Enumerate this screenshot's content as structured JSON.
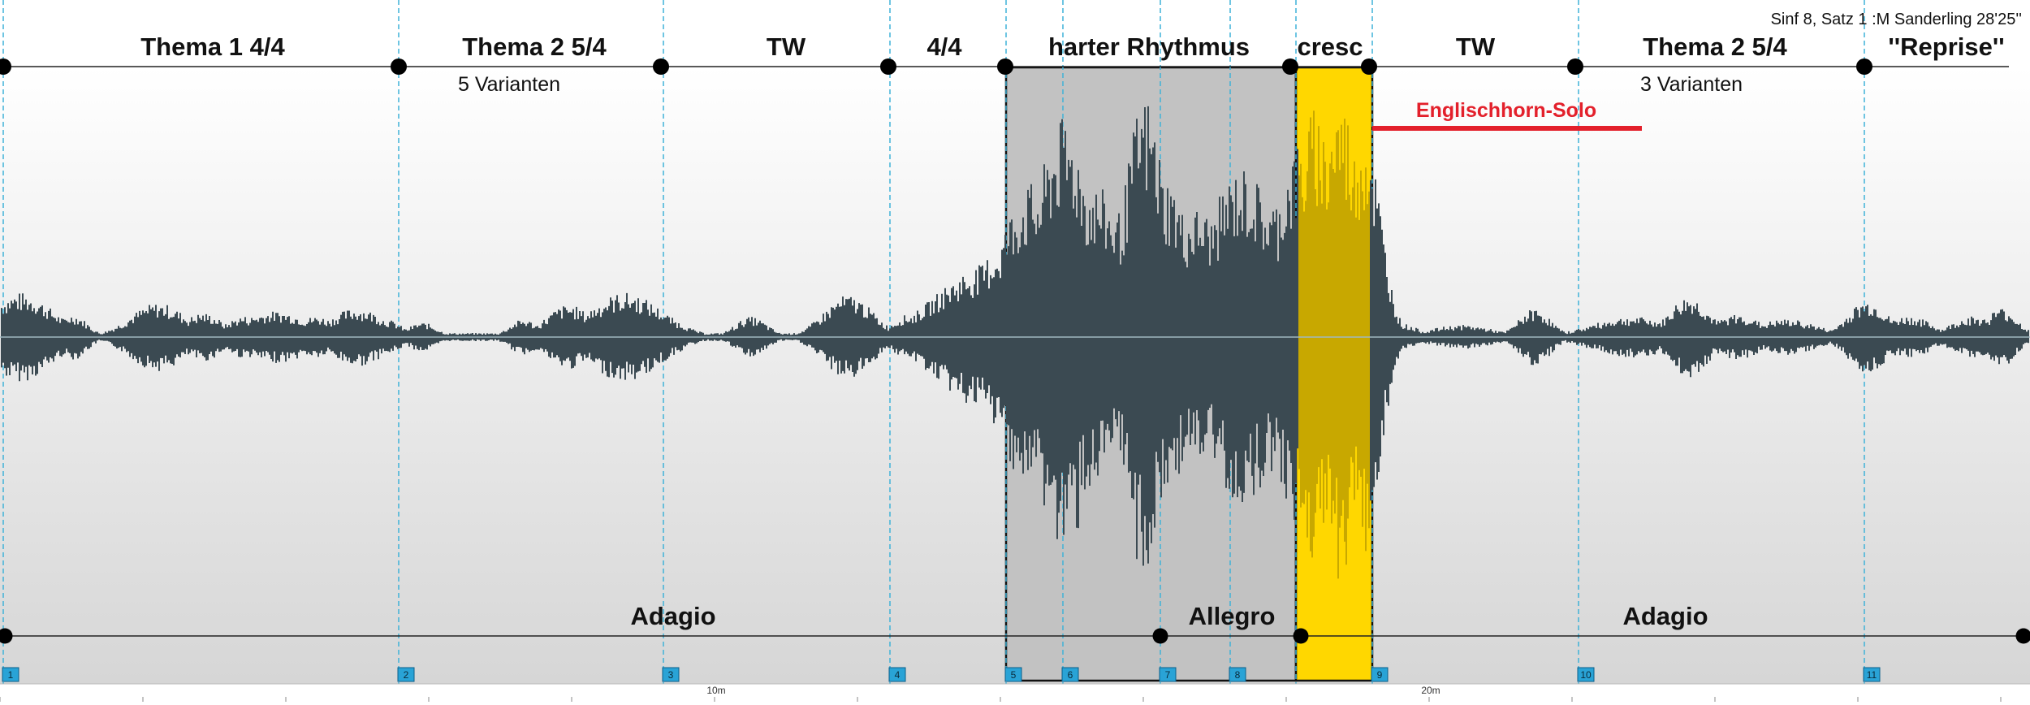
{
  "title": "Sinf 8, Satz 1 :M Sanderling 28'25''",
  "sections": [
    {
      "label": "Thema 1  4/4",
      "sub": ""
    },
    {
      "label": "Thema 2  5/4",
      "sub": "5 Varianten"
    },
    {
      "label": "TW",
      "sub": ""
    },
    {
      "label": "4/4",
      "sub": ""
    },
    {
      "label": "harter Rhythmus",
      "sub": ""
    },
    {
      "label": "cresc",
      "sub": ""
    },
    {
      "label": "TW",
      "sub": ""
    },
    {
      "label": "Thema 2  5/4",
      "sub": "3 Varianten"
    },
    {
      "label": "''Reprise''",
      "sub": ""
    }
  ],
  "annotation": {
    "label": "Englischhorn-Solo",
    "color": "#e3202b"
  },
  "tempi": [
    {
      "label": "Adagio"
    },
    {
      "label": "Allegro"
    },
    {
      "label": "Adagio"
    }
  ],
  "markers": [
    "1",
    "2",
    "3",
    "4",
    "5",
    "6",
    "7",
    "8",
    "9",
    "10",
    "11"
  ],
  "time_ticks": [
    "10m",
    "20m"
  ],
  "colors": {
    "waveform": "#3b4a52",
    "waveform_highlight": "#c8a800",
    "highlight_fill": "#ffd700",
    "selection_fill": "#c2c2c2",
    "marker_fill": "#29a3d6",
    "guide_line": "#3fb2d8",
    "center_line": "#9fb8c0"
  }
}
